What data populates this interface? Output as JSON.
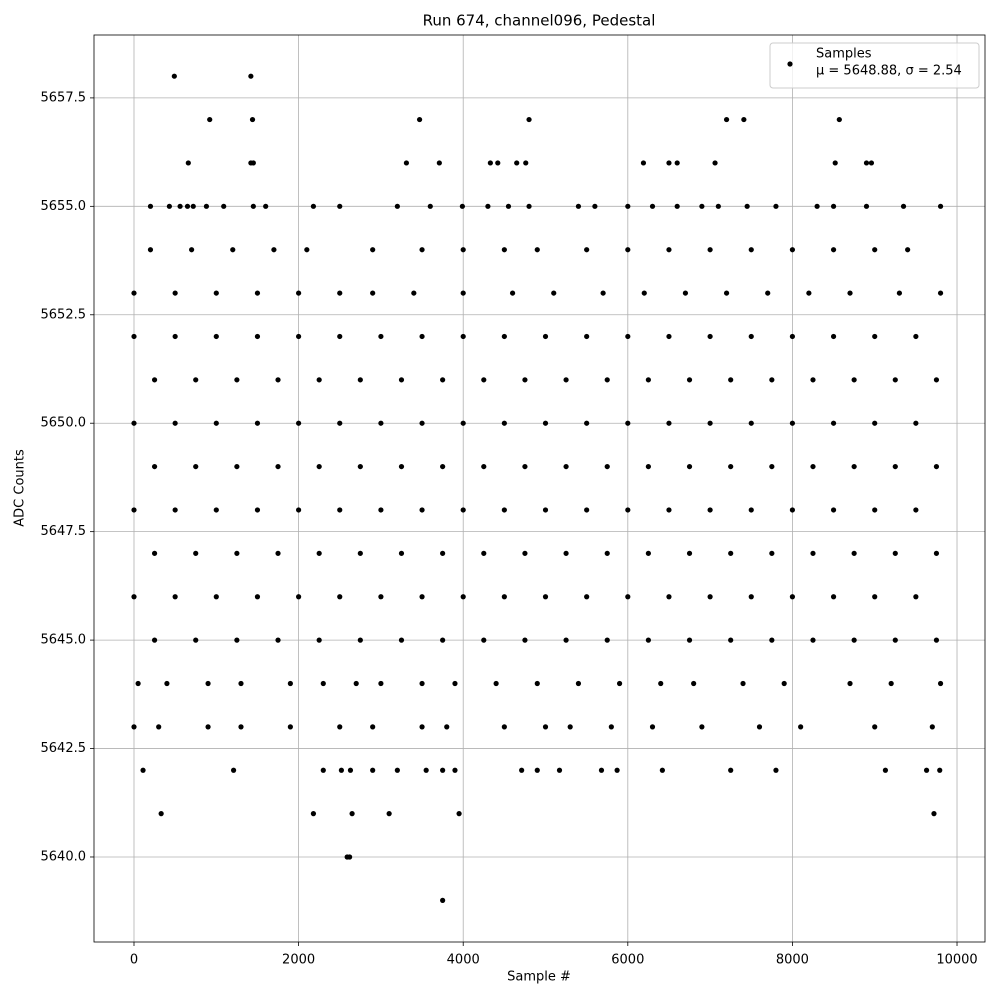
{
  "chart_data": {
    "type": "scatter",
    "title": "Run 674, channel096, Pedestal",
    "x_label": "Sample #",
    "y_label": "ADC Counts",
    "xlim": [
      -486,
      10340
    ],
    "ylim": [
      5638.04,
      5658.95
    ],
    "xticks": [
      0,
      2000,
      4000,
      6000,
      8000,
      10000
    ],
    "yticks": [
      {
        "value": 5640,
        "label": "5640.0"
      },
      5642.5,
      {
        "value": 5645,
        "label": "5645.0"
      },
      5647.5,
      {
        "value": 5650,
        "label": "5650.0"
      },
      5652.5,
      {
        "value": 5655,
        "label": "5655.0"
      },
      5657.5
    ],
    "grid": true,
    "legend": "upper right",
    "x": [
      490,
      1420,
      920,
      1440,
      3470,
      4800,
      7200,
      7410,
      8570,
      660,
      1420,
      1450,
      3310,
      3710,
      4330,
      4420,
      4650,
      4760,
      6190,
      6500,
      6600,
      7060,
      8520,
      8900,
      8960,
      200,
      430,
      560,
      650,
      720,
      880,
      1090,
      1450,
      1600,
      2180,
      2500,
      3200,
      3600,
      3990,
      4300,
      4550,
      4800,
      5400,
      5600,
      6000,
      6300,
      6600,
      6900,
      7100,
      7450,
      7800,
      8300,
      8500,
      8900,
      9350,
      9800,
      200,
      700,
      1200,
      1700,
      2100,
      2900,
      3500,
      4000,
      4500,
      4900,
      5500,
      6000,
      6500,
      7000,
      7500,
      8000,
      8500,
      9000,
      9400,
      0,
      500,
      1000,
      1500,
      2000,
      2500,
      2900,
      3400,
      4000,
      4600,
      5100,
      5700,
      6200,
      6700,
      7200,
      7700,
      8200,
      8700,
      9300,
      9800,
      0,
      500,
      1000,
      1500,
      2000,
      2500,
      3000,
      3500,
      4000,
      4500,
      5000,
      5500,
      6000,
      6500,
      7000,
      7500,
      8000,
      8500,
      9000,
      9500,
      250,
      750,
      1250,
      1750,
      2250,
      2750,
      3250,
      3750,
      4250,
      4750,
      5250,
      5750,
      6250,
      6750,
      7250,
      7750,
      8250,
      8750,
      9250,
      9750,
      0,
      500,
      1000,
      1500,
      2000,
      2500,
      3000,
      3500,
      4000,
      4500,
      5000,
      5500,
      6000,
      6500,
      7000,
      7500,
      8000,
      8500,
      9000,
      9500,
      250,
      750,
      1250,
      1750,
      2250,
      2750,
      3250,
      3750,
      4250,
      4750,
      5250,
      5750,
      6250,
      6750,
      7250,
      7750,
      8250,
      8750,
      9250,
      9750,
      0,
      500,
      1000,
      1500,
      2000,
      2500,
      3000,
      3500,
      4000,
      4500,
      5000,
      5500,
      6000,
      6500,
      7000,
      7500,
      8000,
      8500,
      9000,
      9500,
      250,
      750,
      1250,
      1750,
      2250,
      2750,
      3250,
      3750,
      4250,
      4750,
      5250,
      5750,
      6250,
      6750,
      7250,
      7750,
      8250,
      8750,
      9250,
      9750,
      0,
      500,
      1000,
      1500,
      2000,
      2500,
      3000,
      3500,
      4000,
      4500,
      5000,
      5500,
      6000,
      6500,
      7000,
      7500,
      8000,
      8500,
      9000,
      9500,
      250,
      750,
      1250,
      1750,
      2250,
      2750,
      3250,
      3750,
      4250,
      4750,
      5250,
      5750,
      6250,
      6750,
      7250,
      7750,
      8250,
      8750,
      9250,
      9750,
      50,
      400,
      900,
      1300,
      1900,
      2300,
      2700,
      3000,
      3500,
      3900,
      4400,
      4900,
      5400,
      5900,
      6400,
      6800,
      7400,
      7900,
      8700,
      9200,
      9800,
      0,
      300,
      900,
      1300,
      1900,
      2500,
      2900,
      3500,
      3800,
      4500,
      5000,
      5300,
      5800,
      6300,
      6900,
      7600,
      8100,
      9000,
      9700,
      110,
      1210,
      2300,
      2520,
      2630,
      2900,
      3200,
      3550,
      3750,
      3900,
      4710,
      4900,
      5170,
      5680,
      5870,
      6420,
      7250,
      7800,
      9130,
      9630,
      9790,
      330,
      2180,
      2650,
      3100,
      3950,
      9720,
      2590,
      2620,
      3750
    ],
    "series": [
      {
        "name": "Samples",
        "legend_subtitle": "μ = 5648.88, σ = 2.54",
        "color": "#000000",
        "values": [
          5658,
          5658,
          5657,
          5657,
          5657,
          5657,
          5657,
          5657,
          5657,
          5656,
          5656,
          5656,
          5656,
          5656,
          5656,
          5656,
          5656,
          5656,
          5656,
          5656,
          5656,
          5656,
          5656,
          5656,
          5656,
          5655,
          5655,
          5655,
          5655,
          5655,
          5655,
          5655,
          5655,
          5655,
          5655,
          5655,
          5655,
          5655,
          5655,
          5655,
          5655,
          5655,
          5655,
          5655,
          5655,
          5655,
          5655,
          5655,
          5655,
          5655,
          5655,
          5655,
          5655,
          5655,
          5655,
          5655,
          5654,
          5654,
          5654,
          5654,
          5654,
          5654,
          5654,
          5654,
          5654,
          5654,
          5654,
          5654,
          5654,
          5654,
          5654,
          5654,
          5654,
          5654,
          5654,
          5653,
          5653,
          5653,
          5653,
          5653,
          5653,
          5653,
          5653,
          5653,
          5653,
          5653,
          5653,
          5653,
          5653,
          5653,
          5653,
          5653,
          5653,
          5653,
          5653,
          5652,
          5652,
          5652,
          5652,
          5652,
          5652,
          5652,
          5652,
          5652,
          5652,
          5652,
          5652,
          5652,
          5652,
          5652,
          5652,
          5652,
          5652,
          5652,
          5652,
          5651,
          5651,
          5651,
          5651,
          5651,
          5651,
          5651,
          5651,
          5651,
          5651,
          5651,
          5651,
          5651,
          5651,
          5651,
          5651,
          5651,
          5651,
          5651,
          5651,
          5650,
          5650,
          5650,
          5650,
          5650,
          5650,
          5650,
          5650,
          5650,
          5650,
          5650,
          5650,
          5650,
          5650,
          5650,
          5650,
          5650,
          5650,
          5650,
          5650,
          5649,
          5649,
          5649,
          5649,
          5649,
          5649,
          5649,
          5649,
          5649,
          5649,
          5649,
          5649,
          5649,
          5649,
          5649,
          5649,
          5649,
          5649,
          5649,
          5649,
          5648,
          5648,
          5648,
          5648,
          5648,
          5648,
          5648,
          5648,
          5648,
          5648,
          5648,
          5648,
          5648,
          5648,
          5648,
          5648,
          5648,
          5648,
          5648,
          5648,
          5647,
          5647,
          5647,
          5647,
          5647,
          5647,
          5647,
          5647,
          5647,
          5647,
          5647,
          5647,
          5647,
          5647,
          5647,
          5647,
          5647,
          5647,
          5647,
          5647,
          5646,
          5646,
          5646,
          5646,
          5646,
          5646,
          5646,
          5646,
          5646,
          5646,
          5646,
          5646,
          5646,
          5646,
          5646,
          5646,
          5646,
          5646,
          5646,
          5646,
          5645,
          5645,
          5645,
          5645,
          5645,
          5645,
          5645,
          5645,
          5645,
          5645,
          5645,
          5645,
          5645,
          5645,
          5645,
          5645,
          5645,
          5645,
          5645,
          5645,
          5644,
          5644,
          5644,
          5644,
          5644,
          5644,
          5644,
          5644,
          5644,
          5644,
          5644,
          5644,
          5644,
          5644,
          5644,
          5644,
          5644,
          5644,
          5644,
          5644,
          5644,
          5643,
          5643,
          5643,
          5643,
          5643,
          5643,
          5643,
          5643,
          5643,
          5643,
          5643,
          5643,
          5643,
          5643,
          5643,
          5643,
          5643,
          5643,
          5643,
          5642,
          5642,
          5642,
          5642,
          5642,
          5642,
          5642,
          5642,
          5642,
          5642,
          5642,
          5642,
          5642,
          5642,
          5642,
          5642,
          5642,
          5642,
          5642,
          5642,
          5642,
          5641,
          5641,
          5641,
          5641,
          5641,
          5641,
          5640,
          5640,
          5639
        ]
      }
    ]
  }
}
